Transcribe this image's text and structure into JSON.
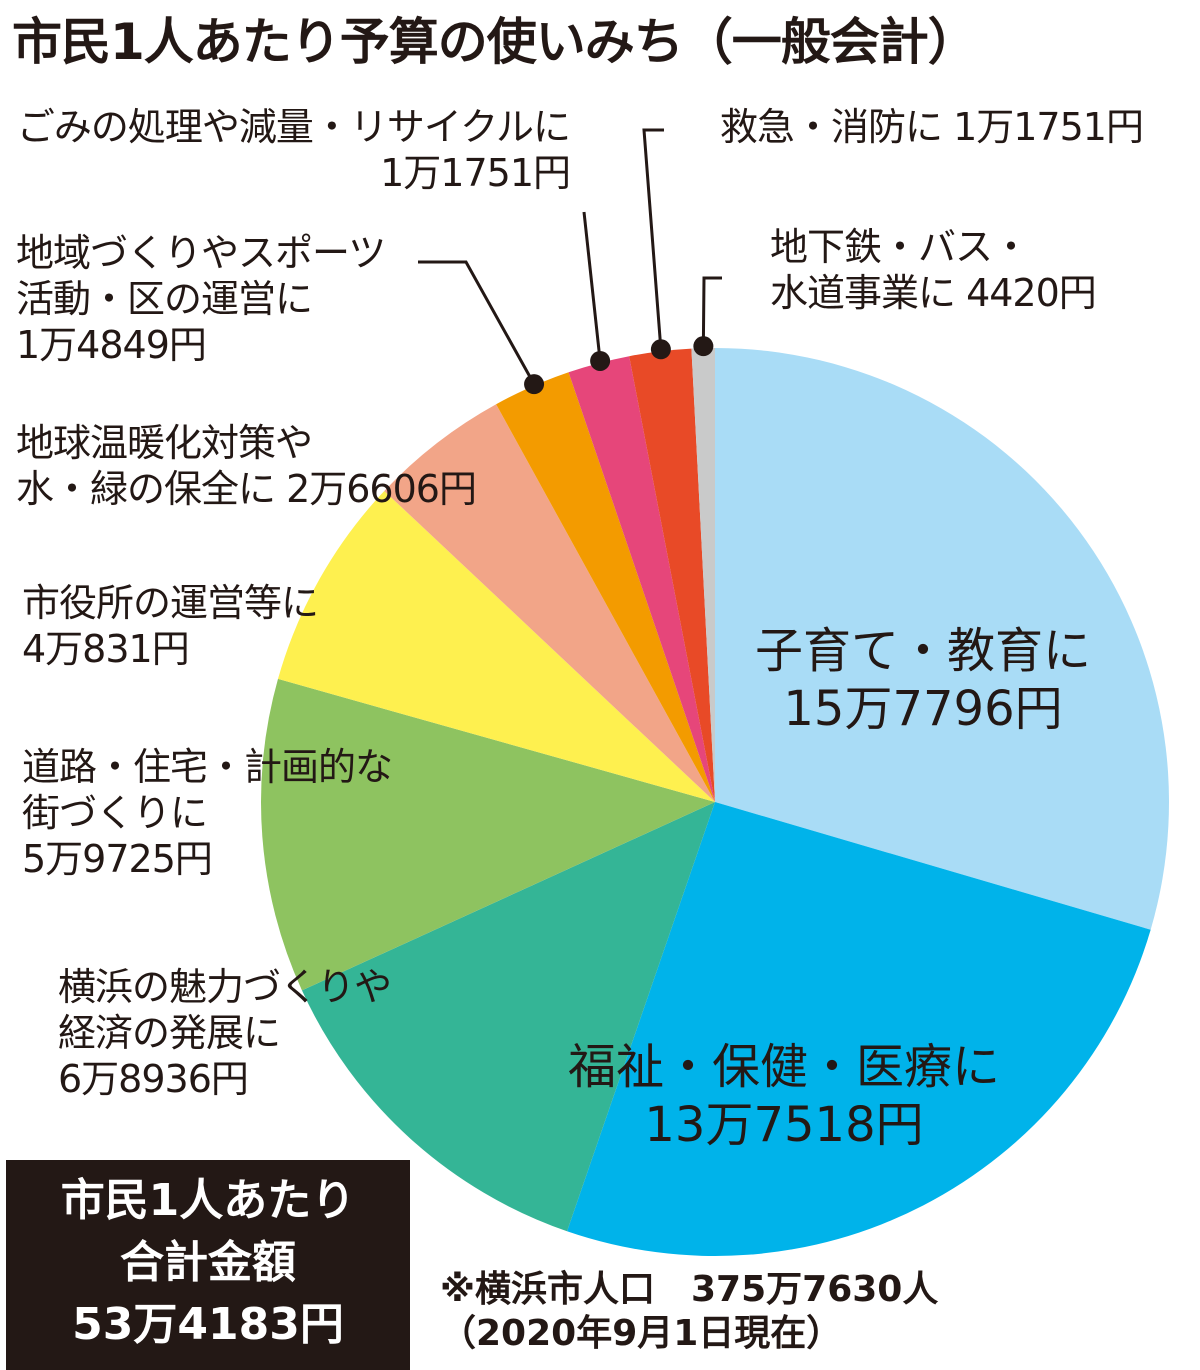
{
  "title": "市民1人あたり予算の使いみち（一般会計）",
  "colors": {
    "child_edu": "#a9dcf6",
    "welfare": "#00b3ea",
    "yokohama": "#34b596",
    "roads": "#8ec360",
    "cityhall": "#fef04f",
    "climate": "#f2a588",
    "community": "#f39b00",
    "garbage": "#e6467a",
    "fire": "#e84a27",
    "subway": "#c9caca"
  },
  "chart_data": {
    "type": "pie",
    "title": "市民1人あたり予算の使いみち（一般会計）",
    "unit": "円",
    "slices": [
      {
        "key": "child_edu",
        "lines": [
          "子育て・教育に",
          "15万7796円"
        ],
        "value": 157796
      },
      {
        "key": "welfare",
        "lines": [
          "福祉・保健・医療に",
          "13万7518円"
        ],
        "value": 137518
      },
      {
        "key": "yokohama",
        "lines": [
          "横浜の魅力づくりや",
          "経済の発展に",
          "6万8936円"
        ],
        "value": 68936
      },
      {
        "key": "roads",
        "lines": [
          "道路・住宅・計画的な",
          "街づくりに",
          "5万9725円"
        ],
        "value": 59725
      },
      {
        "key": "cityhall",
        "lines": [
          "市役所の運営等に",
          "4万831円"
        ],
        "value": 40831
      },
      {
        "key": "climate",
        "lines": [
          "地球温暖化対策や",
          "水・緑の保全に 2万6606円"
        ],
        "value": 26606
      },
      {
        "key": "community",
        "lines": [
          "地域づくりやスポーツ",
          "活動・区の運営に",
          "1万4849円"
        ],
        "value": 14849
      },
      {
        "key": "garbage",
        "lines": [
          "ごみの処理や減量・リサイクルに",
          "1万1751円"
        ],
        "value": 11751
      },
      {
        "key": "fire",
        "lines": [
          "救急・消防に 1万1751円"
        ],
        "value": 11751
      },
      {
        "key": "subway",
        "lines": [
          "地下鉄・バス・",
          "水道事業に 4420円"
        ],
        "value": 4420
      }
    ]
  },
  "total": {
    "lines": [
      "市民1人あたり",
      "合計金額",
      "53万4183円"
    ]
  },
  "note": {
    "lines": [
      "※横浜市人口　375万7630人",
      "（2020年9月1日現在）"
    ]
  }
}
